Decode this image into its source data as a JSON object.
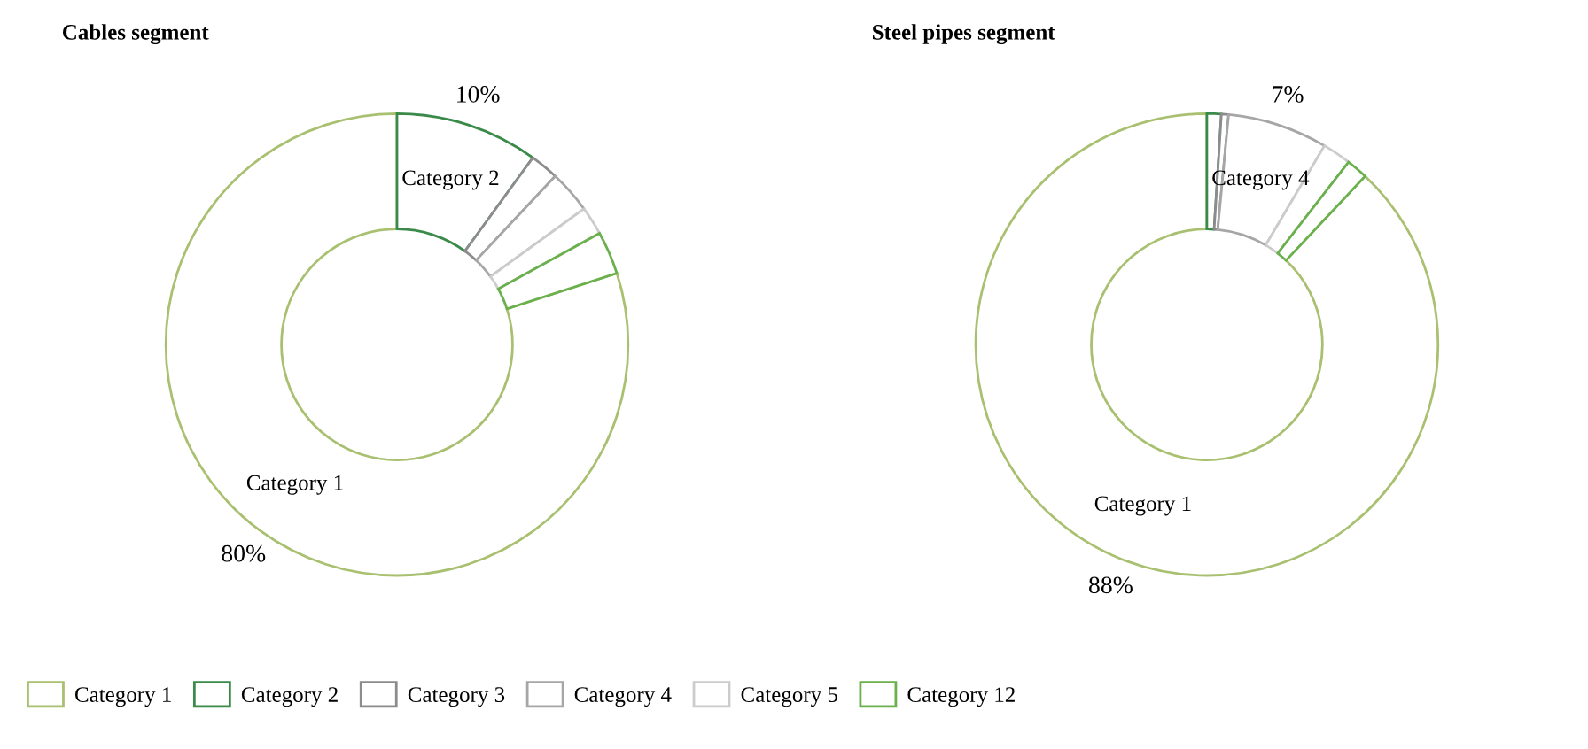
{
  "chart_data": [
    {
      "type": "donut",
      "title": "Cables segment",
      "categories": [
        "Category 1",
        "Category 2",
        "Category 3",
        "Category 4",
        "Category 5",
        "Category 12"
      ],
      "values": [
        80,
        10,
        2,
        3,
        2,
        3
      ],
      "value_labels": [
        "80%",
        "10%",
        null,
        null,
        null,
        null
      ],
      "colors": [
        "#a8c070",
        "#3a8a4a",
        "#8c8c8c",
        "#a6a6a6",
        "#cccccc",
        "#6ab04c"
      ],
      "legend": "bottom"
    },
    {
      "type": "donut",
      "title": "Steel pipes segment",
      "categories": [
        "Category 1",
        null,
        null,
        "Category 4",
        null,
        null
      ],
      "values": [
        88,
        1,
        0.5,
        7,
        2,
        1.5
      ],
      "value_labels": [
        "88%",
        null,
        null,
        "7%",
        null,
        null
      ],
      "colors": [
        "#a8c070",
        "#3a8a4a",
        "#8c8c8c",
        "#a6a6a6",
        "#cccccc",
        "#6ab04c"
      ]
    }
  ]
}
